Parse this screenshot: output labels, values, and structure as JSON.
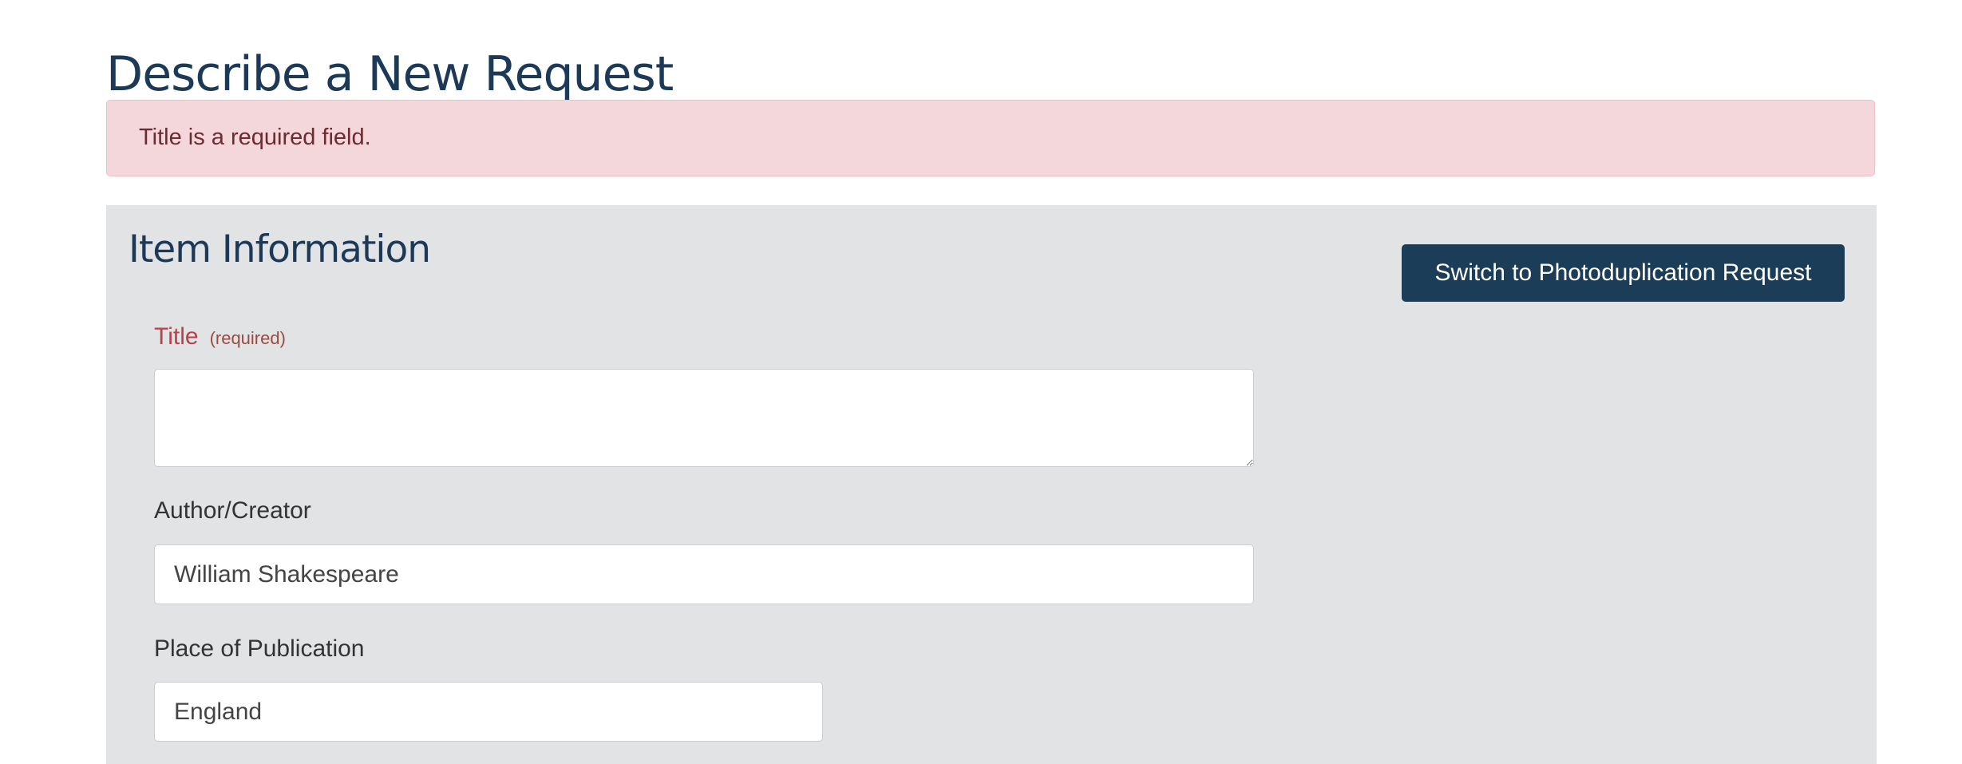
{
  "page": {
    "title": "Describe a New Request"
  },
  "alert": {
    "message": "Title is a required field."
  },
  "section": {
    "title": "Item Information",
    "switch_button": "Switch to Photoduplication Request",
    "fields": {
      "title": {
        "label": "Title",
        "hint": "(required)",
        "value": ""
      },
      "author": {
        "label": "Author/Creator",
        "value": "William Shakespeare"
      },
      "place": {
        "label": "Place of Publication",
        "value": "England"
      }
    }
  },
  "colors": {
    "primary": "#1b3d57",
    "alert_bg": "#f3d7da",
    "error_label": "#b8424c"
  }
}
